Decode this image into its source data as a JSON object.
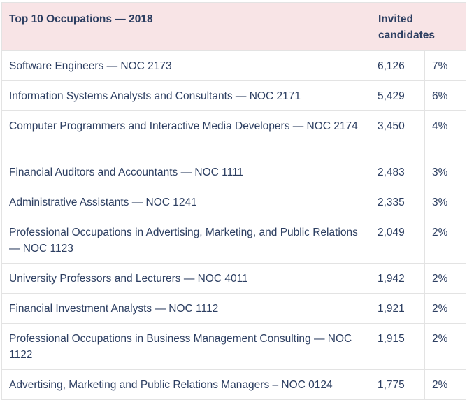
{
  "table": {
    "header": {
      "occupation": "Top 10 Occupations — 2018",
      "invited": "Invited candidates"
    },
    "rows": [
      {
        "occupation": "Software Engineers — NOC 2173",
        "count": "6,126",
        "percent": "7%"
      },
      {
        "occupation": "Information Systems Analysts and Consultants — NOC 2171",
        "count": "5,429",
        "percent": "6%"
      },
      {
        "occupation": "Computer Programmers and Interactive Media Developers — NOC 2174",
        "count": "3,450",
        "percent": "4%"
      },
      {
        "occupation": "Financial Auditors and Accountants — NOC 1111",
        "count": "2,483",
        "percent": "3%"
      },
      {
        "occupation": "Administrative Assistants — NOC 1241",
        "count": "2,335",
        "percent": "3%"
      },
      {
        "occupation": "Professional Occupations in Advertising, Marketing, and Public Relations — NOC 1123",
        "count": "2,049",
        "percent": "2%"
      },
      {
        "occupation": "University Professors and Lecturers — NOC 4011",
        "count": "1,942",
        "percent": "2%"
      },
      {
        "occupation": "Financial Investment Analysts — NOC 1112",
        "count": "1,921",
        "percent": "2%"
      },
      {
        "occupation": "Professional Occupations in Business Management Consulting — NOC 1122",
        "count": "1,915",
        "percent": "2%"
      },
      {
        "occupation": "Advertising, Marketing and Public Relations Managers – NOC 0124",
        "count": "1,775",
        "percent": "2%"
      }
    ]
  },
  "colors": {
    "header_bg": "#f8e4e6",
    "text": "#2c3e61",
    "border": "#e3e3e3"
  }
}
